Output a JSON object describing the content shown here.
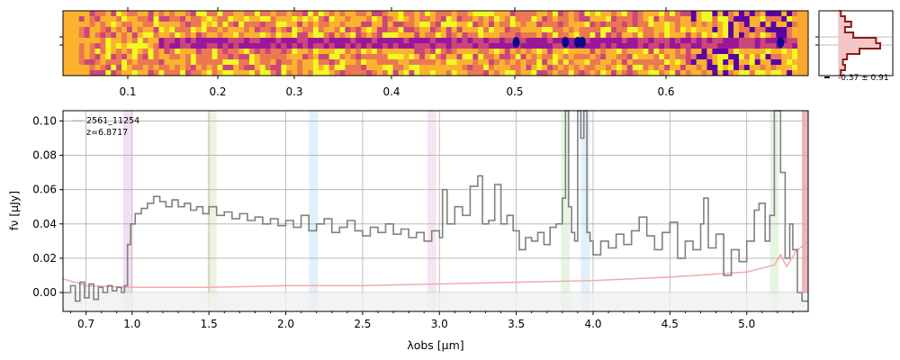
{
  "chart_data": [
    {
      "type": "heatmap",
      "name": "2d-spectrum",
      "colormap": "plasma",
      "x_axis": {
        "scale": "wavelength",
        "tick_labels": [
          "0.1",
          "0.2",
          "0.3",
          "0.4",
          "0.5",
          "0.6"
        ],
        "tick_values": [
          0.1,
          0.2,
          0.3,
          0.4,
          0.5,
          0.6
        ]
      },
      "trace_rows": 2,
      "continuum_start_um": 0.95,
      "bright_knots_um": [
        3.5,
        3.82,
        3.9,
        3.93,
        5.22
      ]
    },
    {
      "type": "line",
      "name": "profile-panel",
      "label": "-0.37 ± 0.91",
      "profile": [
        0.05,
        0.15,
        0.3,
        0.15,
        0.35,
        0.9,
        1.0,
        0.5,
        0.2,
        0.1,
        0.15,
        0.05
      ]
    },
    {
      "type": "line",
      "name": "1d-spectrum",
      "title": "",
      "xlabel": "λobs [μm]",
      "ylabel": "fν [μJy]",
      "legend": {
        "position": "top-left",
        "object_id": "2561_11254",
        "redshift": "z=6.8717"
      },
      "xlim": [
        0.55,
        5.4
      ],
      "ylim": [
        -0.011,
        0.106
      ],
      "xtick_values": [
        0.7,
        1.0,
        1.5,
        2.0,
        2.5,
        3.0,
        3.5,
        4.0,
        4.5,
        5.0
      ],
      "xtick_labels": [
        "0.7",
        "1.0",
        "1.5",
        "2.0",
        "2.5",
        "3.0",
        "3.5",
        "4.0",
        "4.5",
        "5.0"
      ],
      "ytick_values": [
        0.0,
        0.02,
        0.04,
        0.06,
        0.08,
        0.1
      ],
      "ytick_labels": [
        "0.00",
        "0.02",
        "0.04",
        "0.06",
        "0.08",
        "0.10"
      ],
      "lines": [
        {
          "x": 0.97,
          "color": "#d9a3d6"
        },
        {
          "x": 1.52,
          "color": "#c9dca3"
        },
        {
          "x": 2.18,
          "color": "#a9d4ee"
        },
        {
          "x": 2.95,
          "color": "#d9b6dc"
        },
        {
          "x": 3.82,
          "color": "#b8e3b0"
        },
        {
          "x": 3.95,
          "color": "#a9d4ee"
        },
        {
          "x": 5.18,
          "color": "#b8e3b0"
        }
      ],
      "series": [
        {
          "name": "flux",
          "color": "#808080",
          "points": [
            [
              0.55,
              0.0
            ],
            [
              0.6,
              0.004
            ],
            [
              0.63,
              -0.005
            ],
            [
              0.66,
              0.006
            ],
            [
              0.69,
              -0.003
            ],
            [
              0.72,
              0.005
            ],
            [
              0.75,
              -0.004
            ],
            [
              0.78,
              0.003
            ],
            [
              0.81,
              0.0
            ],
            [
              0.84,
              0.004
            ],
            [
              0.87,
              0.001
            ],
            [
              0.9,
              0.003
            ],
            [
              0.93,
              0.0
            ],
            [
              0.95,
              0.004
            ],
            [
              0.97,
              0.028
            ],
            [
              0.99,
              0.04
            ],
            [
              1.02,
              0.046
            ],
            [
              1.06,
              0.049
            ],
            [
              1.1,
              0.052
            ],
            [
              1.14,
              0.056
            ],
            [
              1.18,
              0.053
            ],
            [
              1.22,
              0.05
            ],
            [
              1.26,
              0.054
            ],
            [
              1.3,
              0.05
            ],
            [
              1.34,
              0.052
            ],
            [
              1.38,
              0.048
            ],
            [
              1.42,
              0.05
            ],
            [
              1.46,
              0.046
            ],
            [
              1.5,
              0.05
            ],
            [
              1.55,
              0.045
            ],
            [
              1.6,
              0.047
            ],
            [
              1.65,
              0.043
            ],
            [
              1.7,
              0.046
            ],
            [
              1.75,
              0.042
            ],
            [
              1.8,
              0.044
            ],
            [
              1.85,
              0.04
            ],
            [
              1.9,
              0.043
            ],
            [
              1.95,
              0.039
            ],
            [
              2.0,
              0.042
            ],
            [
              2.05,
              0.038
            ],
            [
              2.1,
              0.045
            ],
            [
              2.15,
              0.036
            ],
            [
              2.2,
              0.04
            ],
            [
              2.25,
              0.043
            ],
            [
              2.3,
              0.035
            ],
            [
              2.35,
              0.038
            ],
            [
              2.4,
              0.042
            ],
            [
              2.45,
              0.036
            ],
            [
              2.5,
              0.033
            ],
            [
              2.55,
              0.038
            ],
            [
              2.6,
              0.035
            ],
            [
              2.65,
              0.04
            ],
            [
              2.7,
              0.034
            ],
            [
              2.75,
              0.037
            ],
            [
              2.8,
              0.032
            ],
            [
              2.85,
              0.035
            ],
            [
              2.9,
              0.03
            ],
            [
              2.95,
              0.036
            ],
            [
              3.0,
              0.032
            ],
            [
              3.02,
              0.06
            ],
            [
              3.05,
              0.04
            ],
            [
              3.1,
              0.05
            ],
            [
              3.15,
              0.045
            ],
            [
              3.2,
              0.062
            ],
            [
              3.25,
              0.068
            ],
            [
              3.28,
              0.04
            ],
            [
              3.32,
              0.042
            ],
            [
              3.36,
              0.063
            ],
            [
              3.4,
              0.04
            ],
            [
              3.44,
              0.045
            ],
            [
              3.48,
              0.036
            ],
            [
              3.52,
              0.025
            ],
            [
              3.56,
              0.032
            ],
            [
              3.6,
              0.03
            ],
            [
              3.64,
              0.035
            ],
            [
              3.68,
              0.028
            ],
            [
              3.72,
              0.038
            ],
            [
              3.76,
              0.04
            ],
            [
              3.8,
              0.055
            ],
            [
              3.82,
              0.106
            ],
            [
              3.84,
              0.05
            ],
            [
              3.86,
              0.035
            ],
            [
              3.88,
              0.03
            ],
            [
              3.9,
              0.106
            ],
            [
              3.92,
              0.09
            ],
            [
              3.94,
              0.106
            ],
            [
              3.96,
              0.035
            ],
            [
              3.98,
              0.03
            ],
            [
              4.0,
              0.022
            ],
            [
              4.05,
              0.03
            ],
            [
              4.1,
              0.026
            ],
            [
              4.15,
              0.034
            ],
            [
              4.2,
              0.028
            ],
            [
              4.25,
              0.036
            ],
            [
              4.3,
              0.044
            ],
            [
              4.35,
              0.033
            ],
            [
              4.4,
              0.025
            ],
            [
              4.45,
              0.035
            ],
            [
              4.5,
              0.041
            ],
            [
              4.55,
              0.02
            ],
            [
              4.6,
              0.03
            ],
            [
              4.65,
              0.025
            ],
            [
              4.7,
              0.04
            ],
            [
              4.72,
              0.055
            ],
            [
              4.75,
              0.026
            ],
            [
              4.8,
              0.034
            ],
            [
              4.85,
              0.01
            ],
            [
              4.9,
              0.025
            ],
            [
              4.95,
              0.018
            ],
            [
              5.0,
              0.03
            ],
            [
              5.05,
              0.048
            ],
            [
              5.08,
              0.052
            ],
            [
              5.12,
              0.03
            ],
            [
              5.15,
              0.045
            ],
            [
              5.18,
              0.106
            ],
            [
              5.2,
              0.106
            ],
            [
              5.22,
              0.07
            ],
            [
              5.25,
              0.02
            ],
            [
              5.28,
              0.04
            ],
            [
              5.3,
              0.025
            ],
            [
              5.33,
              0.0
            ],
            [
              5.36,
              -0.005
            ],
            [
              5.4,
              -0.005
            ]
          ]
        },
        {
          "name": "uncertainty",
          "color": "#f3aaa8",
          "points": [
            [
              0.55,
              0.008
            ],
            [
              0.7,
              0.004
            ],
            [
              1.0,
              0.003
            ],
            [
              1.5,
              0.003
            ],
            [
              2.0,
              0.004
            ],
            [
              2.5,
              0.004
            ],
            [
              3.0,
              0.005
            ],
            [
              3.5,
              0.006
            ],
            [
              4.0,
              0.007
            ],
            [
              4.5,
              0.009
            ],
            [
              5.0,
              0.012
            ],
            [
              5.18,
              0.016
            ],
            [
              5.22,
              0.022
            ],
            [
              5.26,
              0.015
            ],
            [
              5.32,
              0.024
            ],
            [
              5.4,
              0.03
            ]
          ]
        }
      ]
    }
  ]
}
